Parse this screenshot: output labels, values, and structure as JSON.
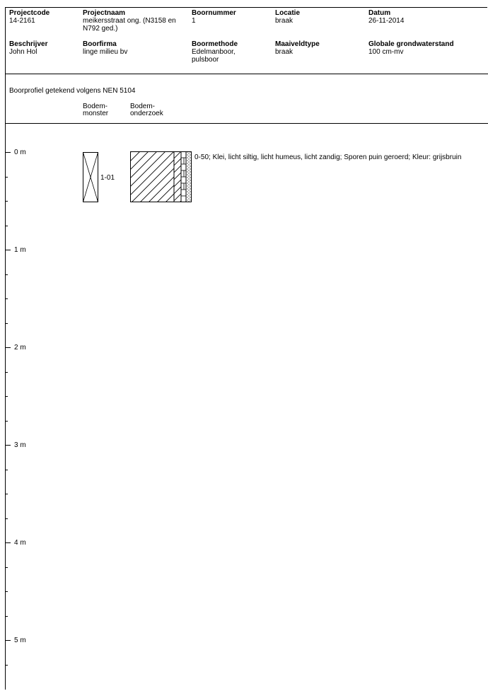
{
  "header": {
    "projectcode": {
      "label": "Projectcode",
      "value": "14-2161"
    },
    "projectnaam": {
      "label": "Projectnaam",
      "value": "meikersstraat ong. (N3158 en\nN792 ged.)"
    },
    "boornummer": {
      "label": "Boornummer",
      "value": "1"
    },
    "locatie": {
      "label": "Locatie",
      "value": "braak"
    },
    "datum": {
      "label": "Datum",
      "value": "26-11-2014"
    },
    "beschrijver": {
      "label": "Beschrijver",
      "value": "John Hol"
    },
    "boorfirma": {
      "label": "Boorfirma",
      "value": "linge milieu bv"
    },
    "boormethode": {
      "label": "Boormethode",
      "value": "Edelmanboor,\npulsboor"
    },
    "maaiveldtype": {
      "label": "Maaiveldtype",
      "value": "braak"
    },
    "grondwaterstand": {
      "label": "Globale grondwaterstand",
      "value": "100 cm-mv"
    }
  },
  "profile": {
    "subtitle": "Boorprofiel getekend volgens NEN 5104",
    "col_bodemmonster": "Bodem-\nmonster",
    "col_bodemonderzoek": "Bodem-\nonderzoek",
    "depth_labels": [
      "0 m",
      "1 m",
      "2 m",
      "3 m",
      "4 m",
      "5 m"
    ],
    "sample_id": "1-01",
    "layer_description": "0-50; Klei, licht siltig, licht humeus, licht zandig; Sporen puin geroerd; Kleur: grijsbruin"
  }
}
